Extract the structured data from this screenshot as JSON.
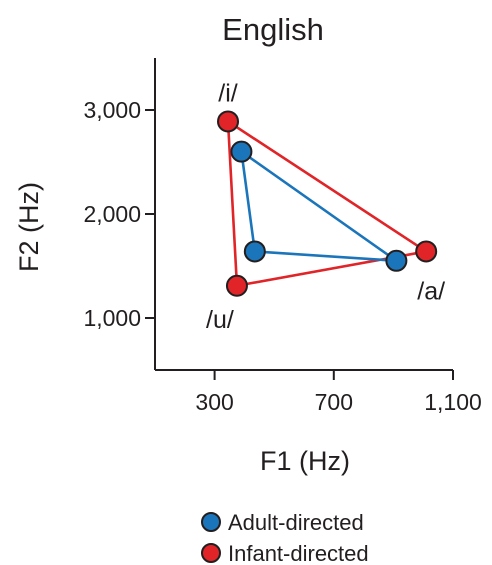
{
  "chart_data": {
    "type": "scatter",
    "title": "English",
    "xlabel": "F1 (Hz)",
    "ylabel": "F2 (Hz)",
    "xlim": [
      100,
      1100
    ],
    "ylim": [
      500,
      3500
    ],
    "x_ticks": [
      300,
      700,
      1100
    ],
    "x_tick_labels": [
      "300",
      "700",
      "1,100"
    ],
    "y_ticks": [
      1000,
      2000,
      3000
    ],
    "y_tick_labels": [
      "1,000",
      "2,000",
      "3,000"
    ],
    "grid": false,
    "legend_position": "bottom",
    "vowel_labels": [
      {
        "text": "/i/",
        "anchor": "i"
      },
      {
        "text": "/u/",
        "anchor": "u"
      },
      {
        "text": "/a/",
        "anchor": "a"
      }
    ],
    "series": [
      {
        "name": "Adult-directed",
        "color": "#1b75bb",
        "points": [
          {
            "vowel": "i",
            "x": 390,
            "y": 2600
          },
          {
            "vowel": "u",
            "x": 435,
            "y": 1640
          },
          {
            "vowel": "a",
            "x": 910,
            "y": 1550
          }
        ]
      },
      {
        "name": "Infant-directed",
        "color": "#e02428",
        "points": [
          {
            "vowel": "i",
            "x": 345,
            "y": 2890
          },
          {
            "vowel": "u",
            "x": 375,
            "y": 1310
          },
          {
            "vowel": "a",
            "x": 1010,
            "y": 1640
          }
        ]
      }
    ]
  }
}
